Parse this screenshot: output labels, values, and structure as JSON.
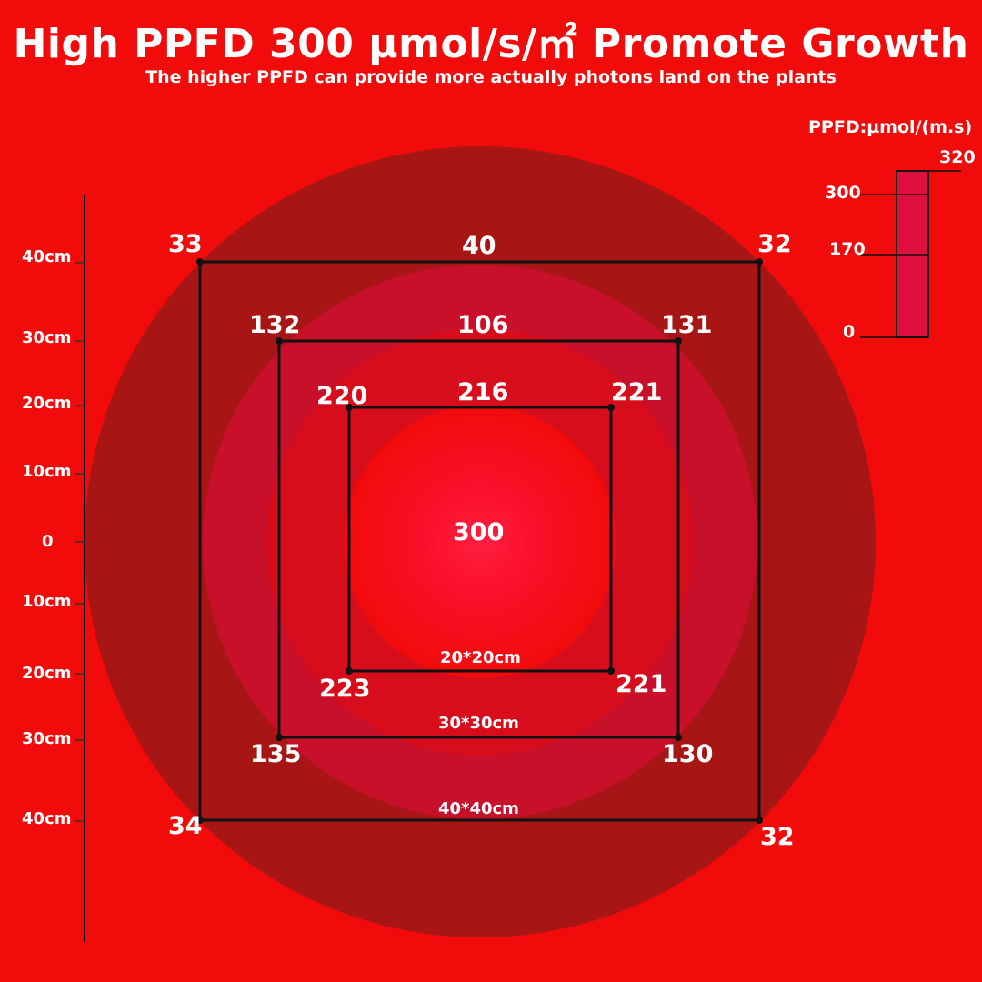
{
  "header": {
    "title": "High PPFD 300 µmol/s/㎡ Promote Growth",
    "subtitle": "The higher PPFD can provide more actually photons land on the plants"
  },
  "colors": {
    "background": "#f20b0b",
    "outer_ring": "#a81515",
    "ring_40": "#a41414",
    "ring_30": "#c8102a",
    "ring_20": "#d70d1c",
    "center": "#ff1e3c",
    "legend_bar": "#e0103e"
  },
  "center_value": "300",
  "squares": [
    {
      "name": "40cm",
      "size_label": "40*40cm",
      "top_mid": "40",
      "corners": {
        "top_left": "33",
        "top_right": "32",
        "bottom_left": "34",
        "bottom_right": "32"
      }
    },
    {
      "name": "30cm",
      "size_label": "30*30cm",
      "top_mid": "106",
      "corners": {
        "top_left": "132",
        "top_right": "131",
        "bottom_left": "135",
        "bottom_right": "130"
      }
    },
    {
      "name": "20cm",
      "size_label": "20*20cm",
      "top_mid": "216",
      "corners": {
        "top_left": "220",
        "top_right": "221",
        "bottom_left": "223",
        "bottom_right": "221"
      }
    }
  ],
  "axis": {
    "labels": [
      "40cm",
      "30cm",
      "20cm",
      "10cm",
      "0",
      "10cm",
      "20cm",
      "30cm",
      "40cm"
    ]
  },
  "legend": {
    "title": "PPFD:µmol/(m.s)",
    "ticks": [
      "320",
      "300",
      "170",
      "0"
    ]
  }
}
